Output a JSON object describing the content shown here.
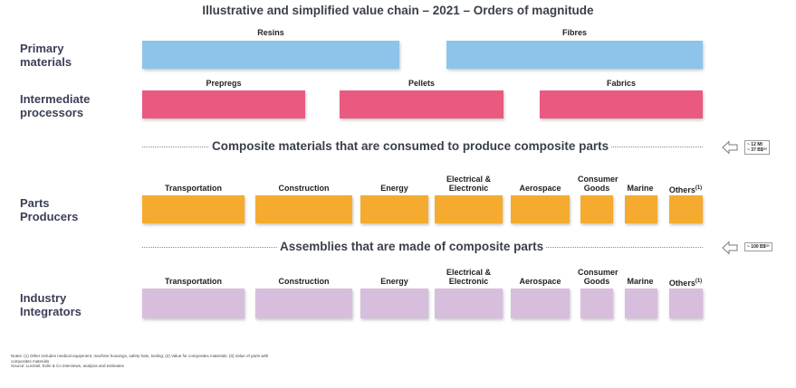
{
  "title": "Illustrative and simplified value chain – 2021 – Orders of magnitude",
  "rows": {
    "primary": "Primary\nmaterials",
    "intermediate": "Intermediate\nprocessors",
    "parts": "Parts\nProducers",
    "integrators": "Industry\nIntegrators"
  },
  "primary_boxes": [
    "Resins",
    "Fibres"
  ],
  "intermediate_boxes": [
    "Prepregs",
    "Pellets",
    "Fabrics"
  ],
  "segments": [
    "Transportation",
    "Construction",
    "Energy",
    "Electrical &\nElectronic",
    "Aerospace",
    "Consumer\nGoods",
    "Marine",
    "Others"
  ],
  "others_note": "(1)",
  "separators": {
    "composite": "Composite materials that are consumed to produce composite parts",
    "assemblies": "Assemblies that are made of composite parts"
  },
  "values": {
    "composite": "~ 12 Mt\n~ 37 B$⁽²⁾",
    "assemblies": "~ 100 B$⁽³⁾"
  },
  "notes": {
    "text": "Notes: (1) Other includes medical equipment, machine housings, safety hats, tooling; (2) Value for composites materials; (3) Value of parts with composites materials",
    "source": "Source: Lucintel, Exlin & Co interviews, analysis and estimates"
  },
  "colors": {
    "primary": "#8ec4ea",
    "intermediate": "#ea5a80",
    "parts": "#f5ab2f",
    "integrators": "#d8bedd"
  }
}
